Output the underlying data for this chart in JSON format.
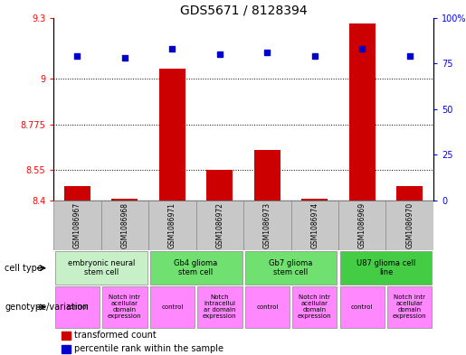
{
  "title": "GDS5671 / 8128394",
  "samples": [
    "GSM1086967",
    "GSM1086968",
    "GSM1086971",
    "GSM1086972",
    "GSM1086973",
    "GSM1086974",
    "GSM1086969",
    "GSM1086970"
  ],
  "transformed_counts": [
    8.47,
    8.41,
    9.05,
    8.55,
    8.65,
    8.41,
    9.27,
    8.47
  ],
  "percentile_ranks": [
    79,
    78,
    83,
    80,
    81,
    79,
    83,
    79
  ],
  "ylim_left": [
    8.4,
    9.3
  ],
  "ylim_right": [
    0,
    100
  ],
  "yticks_left": [
    8.4,
    8.55,
    8.775,
    9.0,
    9.3
  ],
  "yticks_right": [
    0,
    25,
    50,
    75,
    100
  ],
  "ytick_labels_left": [
    "8.4",
    "8.55",
    "8.775",
    "9",
    "9.3"
  ],
  "ytick_labels_right": [
    "0",
    "25",
    "50",
    "75",
    "100%"
  ],
  "hlines": [
    9.0,
    8.775,
    8.55
  ],
  "cell_types": [
    {
      "label": "embryonic neural\nstem cell",
      "start": 0,
      "end": 2,
      "color": "#c8f0c8"
    },
    {
      "label": "Gb4 glioma\nstem cell",
      "start": 2,
      "end": 4,
      "color": "#70e070"
    },
    {
      "label": "Gb7 glioma\nstem cell",
      "start": 4,
      "end": 6,
      "color": "#70e070"
    },
    {
      "label": "U87 glioma cell\nline",
      "start": 6,
      "end": 8,
      "color": "#44cc44"
    }
  ],
  "genotypes": [
    {
      "label": "control",
      "start": 0,
      "end": 1,
      "color": "#ff88ff"
    },
    {
      "label": "Notch intr\nacellular\ndomain\nexpression",
      "start": 1,
      "end": 2,
      "color": "#ff88ff"
    },
    {
      "label": "control",
      "start": 2,
      "end": 3,
      "color": "#ff88ff"
    },
    {
      "label": "Notch\nintracellul\nar domain\nexpression",
      "start": 3,
      "end": 4,
      "color": "#ff88ff"
    },
    {
      "label": "control",
      "start": 4,
      "end": 5,
      "color": "#ff88ff"
    },
    {
      "label": "Notch intr\nacellular\ndomain\nexpression",
      "start": 5,
      "end": 6,
      "color": "#ff88ff"
    },
    {
      "label": "control",
      "start": 6,
      "end": 7,
      "color": "#ff88ff"
    },
    {
      "label": "Notch intr\nacellular\ndomain\nexpression",
      "start": 7,
      "end": 8,
      "color": "#ff88ff"
    }
  ],
  "bar_color": "#cc0000",
  "dot_color": "#0000cc",
  "title_fontsize": 10,
  "tick_fontsize": 7,
  "sample_fontsize": 5.5,
  "cell_type_fontsize": 6,
  "genotype_fontsize": 5,
  "label_fontsize": 7,
  "legend_fontsize": 7,
  "background_color": "#ffffff",
  "sample_bg_color": "#c8c8c8",
  "sample_border_color": "#888888"
}
